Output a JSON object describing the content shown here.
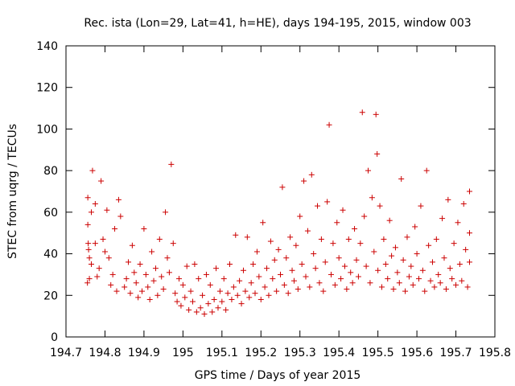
{
  "chart_data": {
    "type": "scatter",
    "title": "Rec. ista (Lon=29, Lat=41, h=HE), days 194-195, 2015, window 003",
    "xlabel": "GPS time / Days of year 2015",
    "ylabel": "STEC from uqrg / TECUs",
    "xlim": [
      194.7,
      195.8
    ],
    "ylim": [
      0,
      140
    ],
    "xticks": [
      "194.7",
      "194.8",
      "194.9",
      "195",
      "195.1",
      "195.2",
      "195.3",
      "195.4",
      "195.5",
      "195.6",
      "195.7",
      "195.8"
    ],
    "yticks": [
      "0",
      "20",
      "40",
      "60",
      "80",
      "100",
      "120",
      "140"
    ],
    "grid": false,
    "legend": "none",
    "marker": "+",
    "color": "#cc0000",
    "series": [
      {
        "values": [
          [
            194.755,
            26
          ],
          [
            194.76,
            28
          ],
          [
            194.765,
            35
          ],
          [
            194.76,
            38
          ],
          [
            194.758,
            42
          ],
          [
            194.757,
            45
          ],
          [
            194.756,
            54
          ],
          [
            194.756,
            67
          ],
          [
            194.765,
            60
          ],
          [
            194.768,
            80
          ],
          [
            194.775,
            64
          ],
          [
            194.775,
            45
          ],
          [
            194.78,
            29
          ],
          [
            194.785,
            33
          ],
          [
            194.79,
            75
          ],
          [
            194.795,
            47
          ],
          [
            194.8,
            41
          ],
          [
            194.805,
            61
          ],
          [
            194.81,
            38
          ],
          [
            194.815,
            25
          ],
          [
            194.82,
            30
          ],
          [
            194.825,
            52
          ],
          [
            194.83,
            22
          ],
          [
            194.835,
            66
          ],
          [
            194.84,
            58
          ],
          [
            194.85,
            24
          ],
          [
            194.855,
            28
          ],
          [
            194.86,
            36
          ],
          [
            194.865,
            21
          ],
          [
            194.87,
            44
          ],
          [
            194.875,
            31
          ],
          [
            194.88,
            26
          ],
          [
            194.885,
            19
          ],
          [
            194.89,
            35
          ],
          [
            194.895,
            22
          ],
          [
            194.9,
            52
          ],
          [
            194.905,
            30
          ],
          [
            194.91,
            24
          ],
          [
            194.915,
            18
          ],
          [
            194.92,
            41
          ],
          [
            194.925,
            27
          ],
          [
            194.93,
            33
          ],
          [
            194.935,
            20
          ],
          [
            194.94,
            47
          ],
          [
            194.945,
            29
          ],
          [
            194.95,
            23
          ],
          [
            194.955,
            60
          ],
          [
            194.96,
            38
          ],
          [
            194.965,
            31
          ],
          [
            194.97,
            83
          ],
          [
            194.975,
            45
          ],
          [
            194.98,
            21
          ],
          [
            194.985,
            17
          ],
          [
            194.99,
            28
          ],
          [
            194.995,
            15
          ],
          [
            195,
            25
          ],
          [
            195.005,
            19
          ],
          [
            195.01,
            34
          ],
          [
            195.015,
            13
          ],
          [
            195.02,
            22
          ],
          [
            195.025,
            17
          ],
          [
            195.03,
            35
          ],
          [
            195.035,
            12
          ],
          [
            195.04,
            28
          ],
          [
            195.045,
            14
          ],
          [
            195.05,
            20
          ],
          [
            195.055,
            11
          ],
          [
            195.06,
            30
          ],
          [
            195.065,
            16
          ],
          [
            195.07,
            25
          ],
          [
            195.075,
            12
          ],
          [
            195.08,
            18
          ],
          [
            195.085,
            33
          ],
          [
            195.09,
            14
          ],
          [
            195.095,
            22
          ],
          [
            195.1,
            17
          ],
          [
            195.105,
            28
          ],
          [
            195.11,
            13
          ],
          [
            195.115,
            21
          ],
          [
            195.12,
            35
          ],
          [
            195.125,
            18
          ],
          [
            195.13,
            24
          ],
          [
            195.135,
            49
          ],
          [
            195.14,
            20
          ],
          [
            195.145,
            27
          ],
          [
            195.15,
            16
          ],
          [
            195.155,
            32
          ],
          [
            195.16,
            22
          ],
          [
            195.165,
            48
          ],
          [
            195.17,
            19
          ],
          [
            195.175,
            26
          ],
          [
            195.18,
            35
          ],
          [
            195.185,
            21
          ],
          [
            195.19,
            41
          ],
          [
            195.195,
            29
          ],
          [
            195.2,
            18
          ],
          [
            195.205,
            55
          ],
          [
            195.21,
            24
          ],
          [
            195.215,
            33
          ],
          [
            195.22,
            20
          ],
          [
            195.225,
            46
          ],
          [
            195.23,
            28
          ],
          [
            195.235,
            37
          ],
          [
            195.24,
            22
          ],
          [
            195.245,
            42
          ],
          [
            195.25,
            30
          ],
          [
            195.255,
            72
          ],
          [
            195.26,
            25
          ],
          [
            195.265,
            38
          ],
          [
            195.27,
            21
          ],
          [
            195.275,
            48
          ],
          [
            195.28,
            32
          ],
          [
            195.285,
            27
          ],
          [
            195.29,
            44
          ],
          [
            195.295,
            23
          ],
          [
            195.3,
            58
          ],
          [
            195.305,
            35
          ],
          [
            195.31,
            75
          ],
          [
            195.315,
            29
          ],
          [
            195.32,
            51
          ],
          [
            195.325,
            24
          ],
          [
            195.33,
            78
          ],
          [
            195.335,
            40
          ],
          [
            195.34,
            33
          ],
          [
            195.345,
            63
          ],
          [
            195.35,
            26
          ],
          [
            195.355,
            47
          ],
          [
            195.36,
            22
          ],
          [
            195.365,
            36
          ],
          [
            195.37,
            65
          ],
          [
            195.375,
            102
          ],
          [
            195.38,
            30
          ],
          [
            195.385,
            45
          ],
          [
            195.39,
            25
          ],
          [
            195.395,
            55
          ],
          [
            195.4,
            38
          ],
          [
            195.405,
            28
          ],
          [
            195.41,
            61
          ],
          [
            195.415,
            34
          ],
          [
            195.42,
            23
          ],
          [
            195.425,
            47
          ],
          [
            195.43,
            31
          ],
          [
            195.435,
            26
          ],
          [
            195.44,
            52
          ],
          [
            195.445,
            37
          ],
          [
            195.45,
            29
          ],
          [
            195.455,
            45
          ],
          [
            195.46,
            108
          ],
          [
            195.465,
            58
          ],
          [
            195.47,
            34
          ],
          [
            195.475,
            80
          ],
          [
            195.48,
            26
          ],
          [
            195.485,
            67
          ],
          [
            195.49,
            41
          ],
          [
            195.495,
            107
          ],
          [
            195.498,
            88
          ],
          [
            195.5,
            32
          ],
          [
            195.505,
            63
          ],
          [
            195.51,
            24
          ],
          [
            195.515,
            47
          ],
          [
            195.52,
            35
          ],
          [
            195.525,
            28
          ],
          [
            195.53,
            56
          ],
          [
            195.535,
            39
          ],
          [
            195.54,
            23
          ],
          [
            195.545,
            43
          ],
          [
            195.55,
            31
          ],
          [
            195.555,
            26
          ],
          [
            195.56,
            76
          ],
          [
            195.565,
            37
          ],
          [
            195.57,
            22
          ],
          [
            195.575,
            48
          ],
          [
            195.58,
            29
          ],
          [
            195.585,
            34
          ],
          [
            195.59,
            25
          ],
          [
            195.595,
            53
          ],
          [
            195.6,
            40
          ],
          [
            195.605,
            28
          ],
          [
            195.61,
            63
          ],
          [
            195.615,
            32
          ],
          [
            195.62,
            22
          ],
          [
            195.625,
            80
          ],
          [
            195.63,
            44
          ],
          [
            195.635,
            27
          ],
          [
            195.64,
            36
          ],
          [
            195.645,
            24
          ],
          [
            195.65,
            47
          ],
          [
            195.655,
            30
          ],
          [
            195.66,
            26
          ],
          [
            195.665,
            57
          ],
          [
            195.67,
            38
          ],
          [
            195.675,
            23
          ],
          [
            195.68,
            66
          ],
          [
            195.685,
            33
          ],
          [
            195.69,
            28
          ],
          [
            195.695,
            45
          ],
          [
            195.7,
            25
          ],
          [
            195.705,
            55
          ],
          [
            195.71,
            35
          ],
          [
            195.715,
            27
          ],
          [
            195.72,
            64
          ],
          [
            195.725,
            42
          ],
          [
            195.73,
            24
          ],
          [
            195.735,
            70
          ],
          [
            195.735,
            50
          ],
          [
            195.735,
            36
          ]
        ]
      }
    ]
  }
}
